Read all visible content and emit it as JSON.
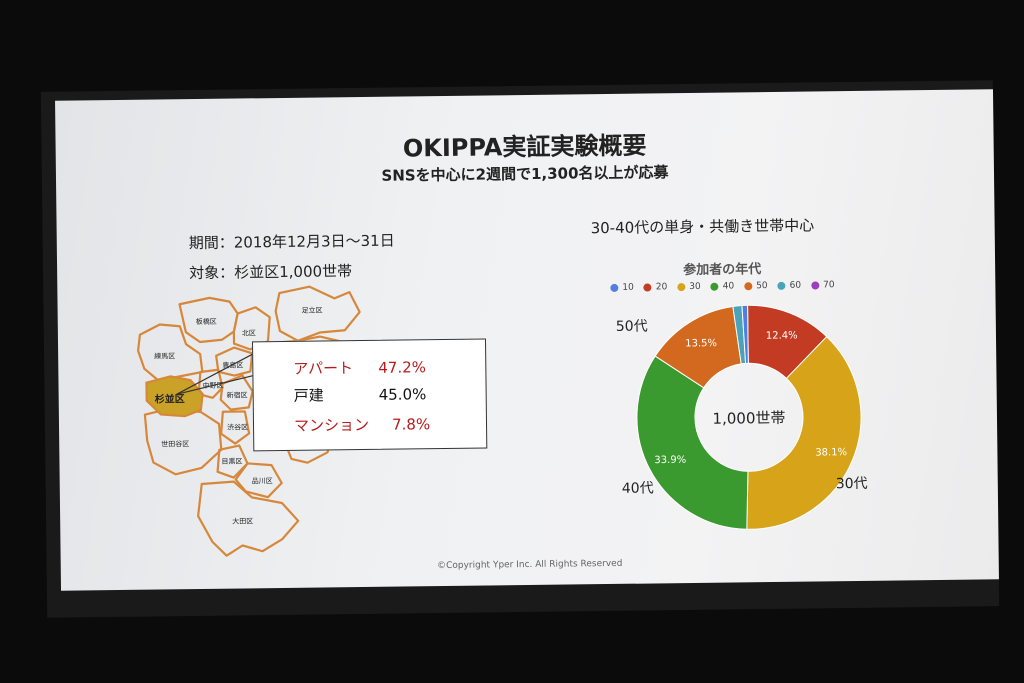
{
  "slide": {
    "title": "OKIPPA実証実験概要",
    "subtitle": "SNSを中心に2週間で1,300名以上が応募",
    "period": "期間：2018年12月3日〜31日",
    "target": "対象：杉並区1,000世帯",
    "right_heading": "30-40代の単身・共働き世帯中心",
    "copyright": "©Copyright Yper Inc. All Rights Reserved"
  },
  "map": {
    "highlight_color": "#c9a227",
    "outline_color": "#d7873a",
    "highlight_label": "杉並区",
    "wards": [
      "板橋区",
      "北区",
      "足立区",
      "練馬区",
      "中野区",
      "豊島区",
      "新宿区",
      "渋谷区",
      "世田谷区",
      "目黒区",
      "品川区",
      "大田区"
    ]
  },
  "callout": {
    "rows": [
      {
        "label": "アパート",
        "value": "47.2%",
        "color": "#b71c1c"
      },
      {
        "label": "戸建",
        "value": "45.0%",
        "color": "#111111"
      },
      {
        "label": "マンション",
        "value": "7.8%",
        "color": "#b71c1c"
      }
    ]
  },
  "chart_data": {
    "type": "pie",
    "title": "参加者の年代",
    "center_label": "1,000世帯",
    "legend": [
      {
        "name": "10",
        "color": "#4f7fe0"
      },
      {
        "name": "20",
        "color": "#c23b22"
      },
      {
        "name": "30",
        "color": "#d6a319"
      },
      {
        "name": "40",
        "color": "#3a9a2f"
      },
      {
        "name": "50",
        "color": "#d2691e"
      },
      {
        "name": "60",
        "color": "#4aa3b8"
      },
      {
        "name": "70",
        "color": "#9b3fc1"
      }
    ],
    "slices": [
      {
        "name": "20",
        "value": 12.4,
        "color": "#c23b22",
        "label": "12.4%"
      },
      {
        "name": "30",
        "value": 38.1,
        "color": "#d6a319",
        "label": "38.1%"
      },
      {
        "name": "40",
        "value": 33.9,
        "color": "#3a9a2f",
        "label": "33.9%"
      },
      {
        "name": "50",
        "value": 13.5,
        "color": "#d2691e",
        "label": "13.5%"
      },
      {
        "name": "60",
        "value": 1.3,
        "color": "#4aa3b8",
        "label": ""
      },
      {
        "name": "10",
        "value": 0.8,
        "color": "#4f7fe0",
        "label": ""
      }
    ],
    "age_labels": {
      "a30": "30代",
      "a40": "40代",
      "a50": "50代"
    }
  }
}
